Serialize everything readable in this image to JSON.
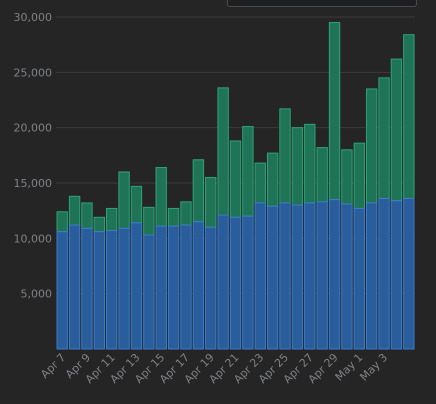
{
  "chart_data": {
    "type": "bar",
    "stacked": true,
    "ylim": [
      0,
      30000
    ],
    "yticks": [
      "5,000",
      "10,000",
      "15,000",
      "20,000",
      "25,000",
      "30,000"
    ],
    "ytick_values": [
      5000,
      10000,
      15000,
      20000,
      25000,
      30000
    ],
    "grid": true,
    "categories": [
      "Apr 7",
      "Apr 8",
      "Apr 9",
      "Apr 10",
      "Apr 11",
      "Apr 12",
      "Apr 13",
      "Apr 14",
      "Apr 15",
      "Apr 16",
      "Apr 17",
      "Apr 18",
      "Apr 19",
      "Apr 20",
      "Apr 21",
      "Apr 22",
      "Apr 23",
      "Apr 24",
      "Apr 25",
      "Apr 26",
      "Apr 27",
      "Apr 28",
      "Apr 29",
      "Apr 30",
      "May 1",
      "May 2",
      "May 3",
      "May 4",
      "May 5"
    ],
    "xtick_labels": [
      "Apr 7",
      "",
      "Apr 9",
      "",
      "Apr 11",
      "",
      "Apr 13",
      "",
      "Apr 15",
      "",
      "Apr 17",
      "",
      "Apr 19",
      "",
      "Apr 21",
      "",
      "Apr 23",
      "",
      "Apr 25",
      "",
      "Apr 27",
      "",
      "Apr 29",
      "",
      "May 1",
      "",
      "May 3",
      "",
      ""
    ],
    "series": [
      {
        "color": "#2a5d9c",
        "values": [
          10600,
          11200,
          10900,
          10600,
          10700,
          10900,
          11400,
          10300,
          11100,
          11100,
          11200,
          11500,
          11000,
          12100,
          11900,
          12000,
          13200,
          12900,
          13200,
          13000,
          13200,
          13300,
          13500,
          13100,
          12700,
          13200,
          13600,
          13400,
          13600
        ]
      },
      {
        "color": "#1f7356",
        "values": [
          1800,
          2600,
          2300,
          1300,
          2000,
          5100,
          3300,
          2500,
          5300,
          1600,
          2100,
          5600,
          4500,
          11500,
          6900,
          8100,
          3600,
          4800,
          8500,
          7000,
          7100,
          4900,
          16000,
          4900,
          5900,
          10300,
          10900,
          12800,
          14800
        ]
      }
    ]
  }
}
